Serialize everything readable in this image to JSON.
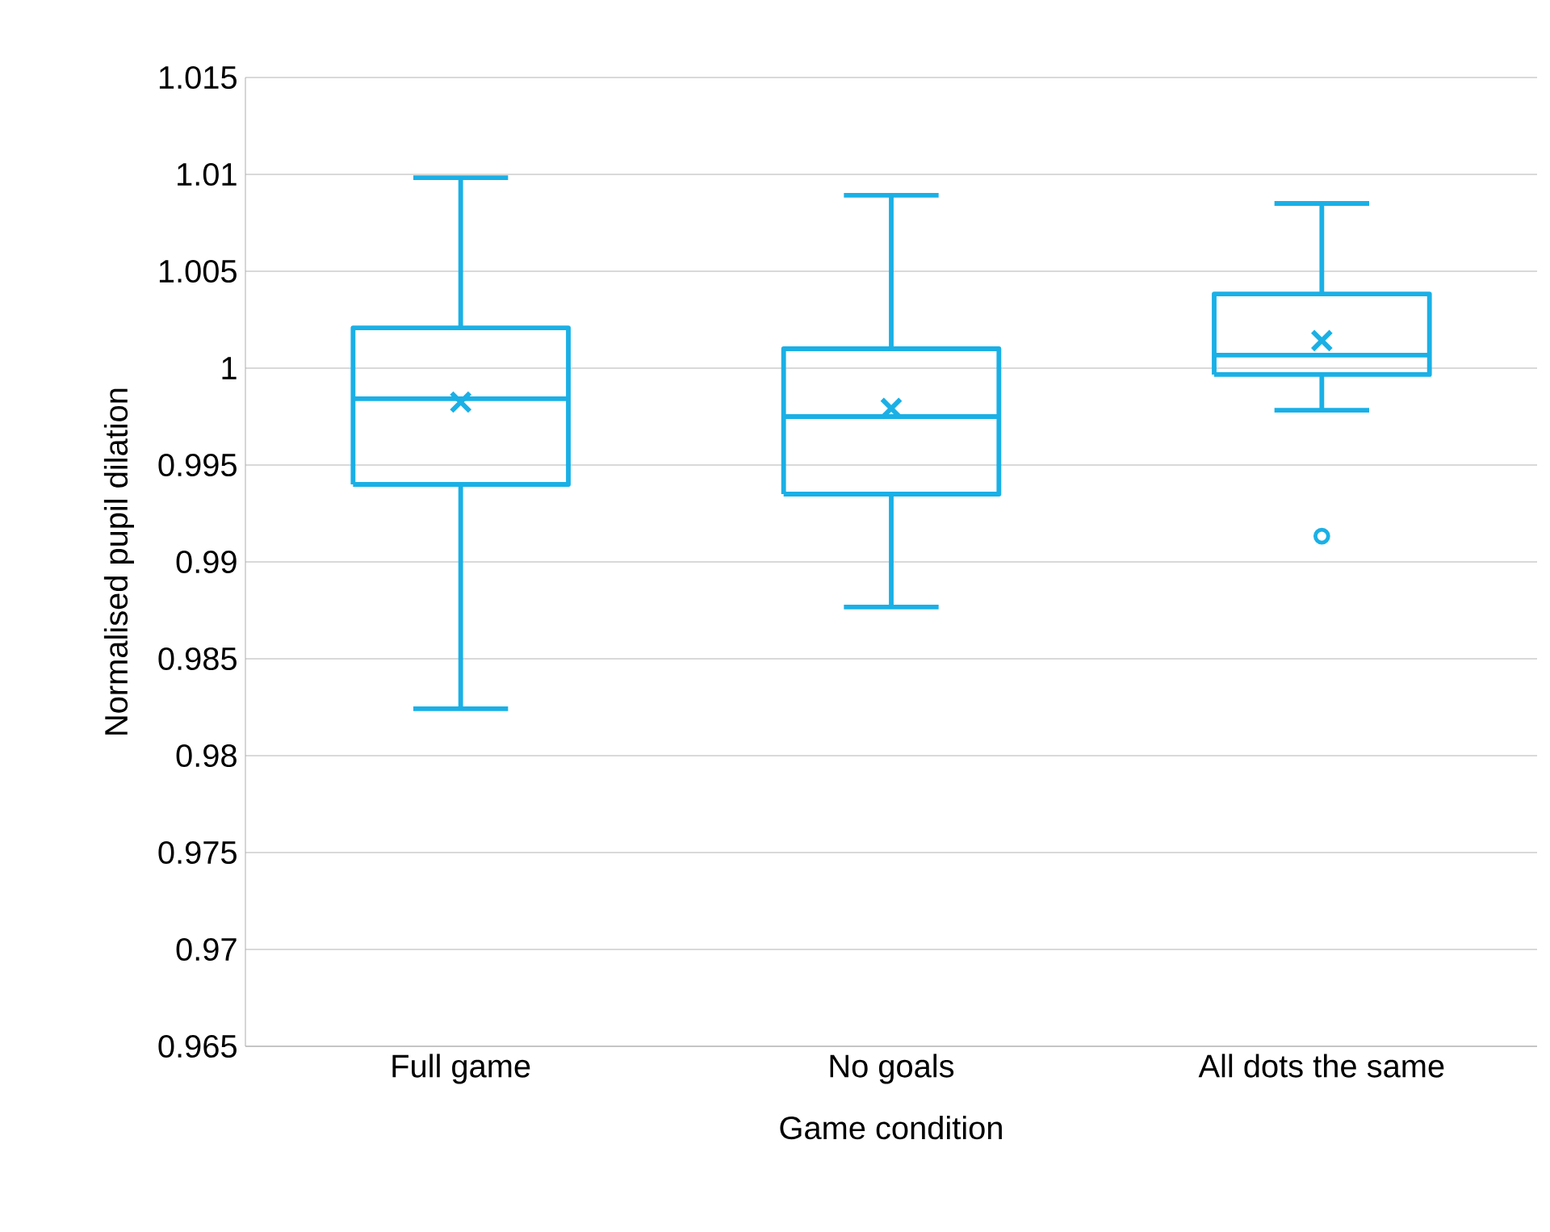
{
  "chart_data": {
    "type": "box",
    "xlabel": "Game condition",
    "ylabel": "Normalised pupil dilation",
    "categories": [
      "Full game",
      "No goals",
      "All dots the same"
    ],
    "color": "#1ab0e6",
    "boxes": [
      {
        "low": 0.98242,
        "q1": 0.994,
        "median": 0.99842,
        "q3": 1.00208,
        "high": 1.00983,
        "mean": 0.99825
      },
      {
        "low": 0.98767,
        "q1": 0.9935,
        "median": 0.9975,
        "q3": 1.001,
        "high": 1.00892,
        "mean": 0.99792
      },
      {
        "low": 0.99783,
        "q1": 0.99967,
        "median": 1.00067,
        "q3": 1.00383,
        "high": 1.0085,
        "mean": 1.00142,
        "outliers": [
          0.99133
        ]
      }
    ],
    "ylim": [
      0.965,
      1.015
    ],
    "yticks": [
      0.965,
      0.97,
      0.975,
      0.98,
      0.985,
      0.99,
      0.995,
      1,
      1.005,
      1.01,
      1.015
    ],
    "grid": "y"
  }
}
